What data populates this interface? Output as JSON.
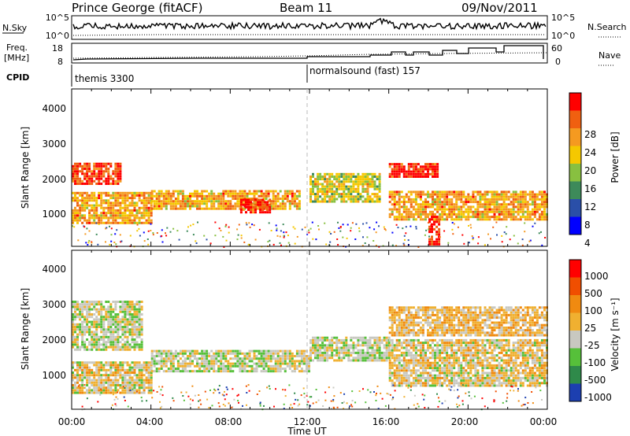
{
  "header": {
    "station": "Prince George (fitACF)",
    "beam": "Beam 11",
    "date": "09/Nov/2011"
  },
  "top_panels": {
    "nsky_label": "N.Sky",
    "nsky_ticks": [
      "10^5",
      "10^0"
    ],
    "nsearch_label": "N.Search",
    "nsearch_ticks": [
      "10^5",
      "10^0"
    ],
    "freq_label": "Freq.",
    "freq_unit": "[MHz]",
    "freq_ticks": [
      "18",
      "8"
    ],
    "nave_label": "Nave",
    "nave_ticks": [
      "60",
      "0"
    ],
    "cpid_label": "CPID",
    "cpid_segments": [
      "themis 3300",
      "normalsound (fast) 157"
    ]
  },
  "time_axis": {
    "label": "Time UT",
    "ticks": [
      "00:00",
      "04:00",
      "08:00",
      "12:00",
      "16:00",
      "20:00",
      "00:00"
    ]
  },
  "power_panel": {
    "ylabel": "Slant Range [km]",
    "yticks": [
      "4000",
      "3000",
      "2000",
      "1000"
    ],
    "colorbar_label": "Power [dB]",
    "colorbar_ticks": [
      "28",
      "24",
      "20",
      "16",
      "12",
      "8",
      "4"
    ],
    "colors": [
      "#0000ff",
      "#2a4fa8",
      "#3d8a5a",
      "#88c040",
      "#f5c800",
      "#f59a20",
      "#f06010",
      "#ff0000"
    ]
  },
  "velocity_panel": {
    "ylabel": "Slant Range [km]",
    "yticks": [
      "4000",
      "3000",
      "2000",
      "1000"
    ],
    "colorbar_label": "Velocity [m s⁻¹]",
    "colorbar_ticks": [
      "1000",
      "500",
      "100",
      "25",
      "-25",
      "-100",
      "-500",
      "-1000"
    ],
    "colors": [
      "#1c3fb0",
      "#2f8a4a",
      "#56c03a",
      "#c8c8c0",
      "#f0b030",
      "#f08a10",
      "#f04e00",
      "#ff0000"
    ]
  },
  "chart_data": [
    {
      "type": "heatmap",
      "title": "Power",
      "x_ticks": [
        "00:00",
        "04:00",
        "08:00",
        "12:00",
        "16:00",
        "20:00",
        "00:00"
      ],
      "ylabel": "Slant Range [km]",
      "ylim": [
        180,
        4600
      ],
      "colorbar": "Power [dB]",
      "colorbar_range": [
        0,
        30
      ],
      "regions": [
        {
          "t0": 0.0,
          "t1": 2.5,
          "r0": 1900,
          "r1": 2500,
          "dB": 26
        },
        {
          "t0": 0.0,
          "t1": 4.0,
          "r0": 800,
          "r1": 1700,
          "dB": 20
        },
        {
          "t0": 4.0,
          "t1": 11.5,
          "r0": 1200,
          "r1": 1700,
          "dB": 20
        },
        {
          "t0": 8.5,
          "t1": 10.0,
          "r0": 1100,
          "r1": 1500,
          "dB": 28
        },
        {
          "t0": 12.0,
          "t1": 15.5,
          "r0": 1400,
          "r1": 2200,
          "dB": 16
        },
        {
          "t0": 16.0,
          "t1": 18.5,
          "r0": 2100,
          "r1": 2500,
          "dB": 28
        },
        {
          "t0": 16.0,
          "t1": 24.0,
          "r0": 900,
          "r1": 1700,
          "dB": 20
        },
        {
          "t0": 18.0,
          "t1": 18.5,
          "r0": 200,
          "r1": 1000,
          "dB": 30
        }
      ]
    },
    {
      "type": "heatmap",
      "title": "Velocity",
      "x_ticks": [
        "00:00",
        "04:00",
        "08:00",
        "12:00",
        "16:00",
        "20:00",
        "00:00"
      ],
      "ylabel": "Slant Range [km]",
      "ylim": [
        180,
        4600
      ],
      "colorbar": "Velocity [m s⁻¹]",
      "colorbar_range": [
        -1000,
        1000
      ],
      "regions": [
        {
          "t0": 0.0,
          "t1": 3.5,
          "r0": 1800,
          "r1": 3200,
          "v": -100
        },
        {
          "t0": 0.0,
          "t1": 4.0,
          "r0": 600,
          "r1": 1500,
          "v": 0
        },
        {
          "t0": 4.0,
          "t1": 12.0,
          "r0": 1200,
          "r1": 1800,
          "v": -100
        },
        {
          "t0": 12.0,
          "t1": 16.0,
          "r0": 1500,
          "r1": 2200,
          "v": -100
        },
        {
          "t0": 16.0,
          "t1": 24.0,
          "r0": 800,
          "r1": 2100,
          "v": 0
        },
        {
          "t0": 16.0,
          "t1": 24.0,
          "r0": 2200,
          "r1": 3000,
          "v": 100
        }
      ]
    }
  ]
}
